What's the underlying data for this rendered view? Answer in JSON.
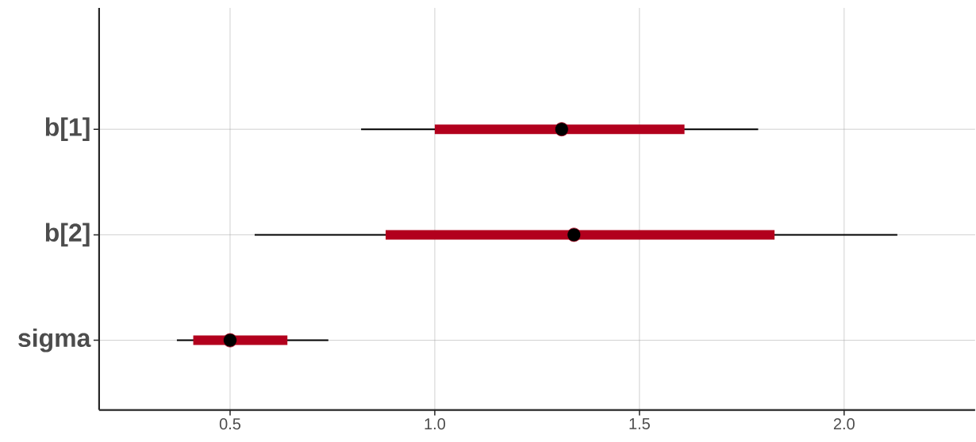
{
  "chart_data": {
    "type": "box",
    "orientation": "horizontal",
    "categories": [
      "b[1]",
      "b[2]",
      "sigma"
    ],
    "series": [
      {
        "color": "#b2001d",
        "boxes": [
          {
            "low": 0.82,
            "q1": 1.0,
            "median": 1.31,
            "q3": 1.61,
            "high": 1.79
          },
          {
            "low": 0.56,
            "q1": 0.88,
            "median": 1.34,
            "q3": 1.83,
            "high": 2.13
          },
          {
            "low": 0.37,
            "q1": 0.41,
            "median": 0.5,
            "q3": 0.64,
            "high": 0.74
          }
        ]
      }
    ],
    "xlim": [
      0.18,
      2.32
    ],
    "xticks": [
      {
        "value": 0.5,
        "label": "0.5"
      },
      {
        "value": 1.0,
        "label": "1.0"
      },
      {
        "value": 1.5,
        "label": "1.5"
      },
      {
        "value": 2.0,
        "label": "2.0"
      }
    ],
    "grid": true
  }
}
